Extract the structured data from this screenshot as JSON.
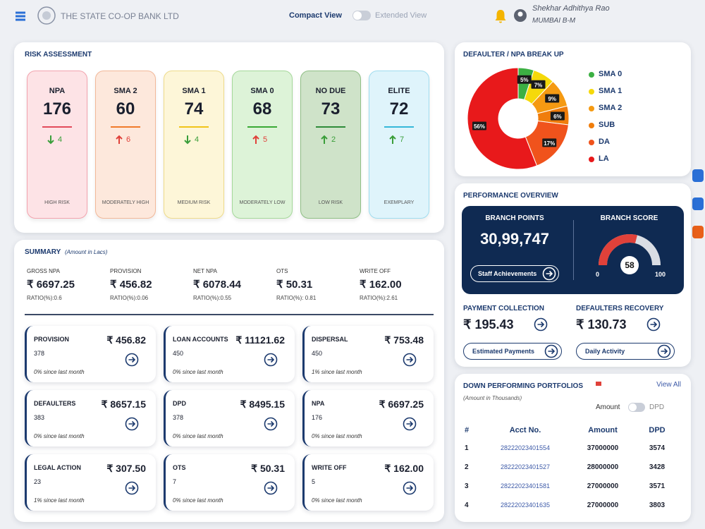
{
  "header": {
    "bank_name": "THE STATE CO-OP BANK LTD",
    "view_toggle": {
      "on": "Compact View",
      "off": "Extended View"
    },
    "user_name": "Shekhar Adhithya Rao",
    "branch": "MUMBAI B-M"
  },
  "risk_assessment": {
    "title": "RISK ASSESSMENT",
    "cards": [
      {
        "label": "NPA",
        "value": "176",
        "change": "4",
        "trend": "down",
        "trend_color": "#3a9e3a",
        "caption": "HIGH RISK",
        "bg": "#fde3e6",
        "border": "#f3a3ae",
        "accent": "#e24b5b"
      },
      {
        "label": "SMA 2",
        "value": "60",
        "change": "6",
        "trend": "up",
        "trend_color": "#e0413a",
        "caption": "MODERATELY HIGH",
        "bg": "#fde8dc",
        "border": "#f2b899",
        "accent": "#f07a2a"
      },
      {
        "label": "SMA 1",
        "value": "74",
        "change": "4",
        "trend": "down",
        "trend_color": "#3a9e3a",
        "caption": "MEDIUM RISK",
        "bg": "#fdf6d8",
        "border": "#eedb8a",
        "accent": "#f0c419"
      },
      {
        "label": "SMA 0",
        "value": "68",
        "change": "5",
        "trend": "up",
        "trend_color": "#e0413a",
        "caption": "MODERATELY LOW",
        "bg": "#ddf3d8",
        "border": "#a5d89a",
        "accent": "#39a935"
      },
      {
        "label": "NO DUE",
        "value": "73",
        "change": "2",
        "trend": "up",
        "trend_color": "#3a9e3a",
        "caption": "LOW RISK",
        "bg": "#cfe3c9",
        "border": "#8fbf85",
        "accent": "#2e8b3a"
      },
      {
        "label": "ELITE",
        "value": "72",
        "change": "7",
        "trend": "up",
        "trend_color": "#3a9e3a",
        "caption": "EXEMPLARY",
        "bg": "#dff4fb",
        "border": "#9fdcef",
        "accent": "#36b8d9"
      }
    ]
  },
  "summary": {
    "title": "SUMMARY",
    "subtitle": "(Amount in Lacs)",
    "items": [
      {
        "label": "GROSS NPA",
        "value": "₹ 6697.25",
        "ratio": "RATIO(%):0.6"
      },
      {
        "label": "PROVISION",
        "value": "₹ 456.82",
        "ratio": "RATIO(%):0.06"
      },
      {
        "label": "NET NPA",
        "value": "₹ 6078.44",
        "ratio": "RATIO(%):0.55"
      },
      {
        "label": "OTS",
        "value": "₹ 50.31",
        "ratio": "RATIO(%): 0.81"
      },
      {
        "label": "WRITE OFF",
        "value": "₹ 162.00",
        "ratio": "RATIO(%):2.61"
      }
    ],
    "cards": [
      {
        "label": "PROVISION",
        "count": "378",
        "amount": "₹ 456.82",
        "change": "0% since last month"
      },
      {
        "label": "LOAN ACCOUNTS",
        "count": "450",
        "amount": "₹ 11121.62",
        "change": "0% since last month"
      },
      {
        "label": "DISPERSAL",
        "count": "450",
        "amount": "₹ 753.48",
        "change": "1% since last month"
      },
      {
        "label": "DEFAULTERS",
        "count": "383",
        "amount": "₹ 8657.15",
        "change": "0% since last month"
      },
      {
        "label": "DPD",
        "count": "378",
        "amount": "₹ 8495.15",
        "change": "0% since last month"
      },
      {
        "label": "NPA",
        "count": "176",
        "amount": "₹ 6697.25",
        "change": "0% since last month"
      },
      {
        "label": "LEGAL ACTION",
        "count": "23",
        "amount": "₹ 307.50",
        "change": "1% since last month"
      },
      {
        "label": "OTS",
        "count": "7",
        "amount": "₹ 50.31",
        "change": "0% since last month"
      },
      {
        "label": "WRITE OFF",
        "count": "5",
        "amount": "₹ 162.00",
        "change": "0% since last month"
      }
    ]
  },
  "npa_breakup": {
    "title": "DEFAULTER / NPA BREAK UP",
    "segments": [
      {
        "name": "SMA 0",
        "value": 5,
        "value_label": "5%",
        "color": "#3cb043"
      },
      {
        "name": "SMA 1",
        "value": 7,
        "value_label": "7%",
        "color": "#f5d90a"
      },
      {
        "name": "SMA 2",
        "value": 9,
        "value_label": "9%",
        "color": "#f59a12"
      },
      {
        "name": "SUB",
        "value": 6,
        "value_label": "6%",
        "color": "#f07d0c"
      },
      {
        "name": "DA",
        "value": 17,
        "value_label": "17%",
        "color": "#f0531c"
      },
      {
        "name": "LA",
        "value": 56,
        "value_label": "56%",
        "color": "#e8191b"
      }
    ]
  },
  "performance": {
    "title": "PERFORMANCE OVERVIEW",
    "branch_points": {
      "label": "BRANCH POINTS",
      "value": "30,99,747",
      "button": "Staff Achievements"
    },
    "branch_score": {
      "label": "BRANCH SCORE",
      "value": 58,
      "min": 0,
      "max": 100
    },
    "payment_collection": {
      "label": "PAYMENT COLLECTION",
      "value": "₹ 195.43",
      "button": "Estimated Payments"
    },
    "defaulters_recovery": {
      "label": "DEFAULTERS RECOVERY",
      "value": "₹ 130.73",
      "button": "Daily Activity"
    }
  },
  "portfolios": {
    "title": "DOWN PERFORMING PORTFOLIOS",
    "subtitle": "(Amount in Thousands)",
    "view_all": "View All",
    "toggle": {
      "on": "Amount",
      "off": "DPD"
    },
    "columns": [
      "#",
      "Acct No.",
      "Amount",
      "DPD"
    ],
    "rows": [
      [
        "1",
        "28222023401554",
        "37000000",
        "3574"
      ],
      [
        "2",
        "28222023401527",
        "28000000",
        "3428"
      ],
      [
        "3",
        "28222023401581",
        "27000000",
        "3571"
      ],
      [
        "4",
        "28222023401635",
        "27000000",
        "3803"
      ]
    ]
  }
}
